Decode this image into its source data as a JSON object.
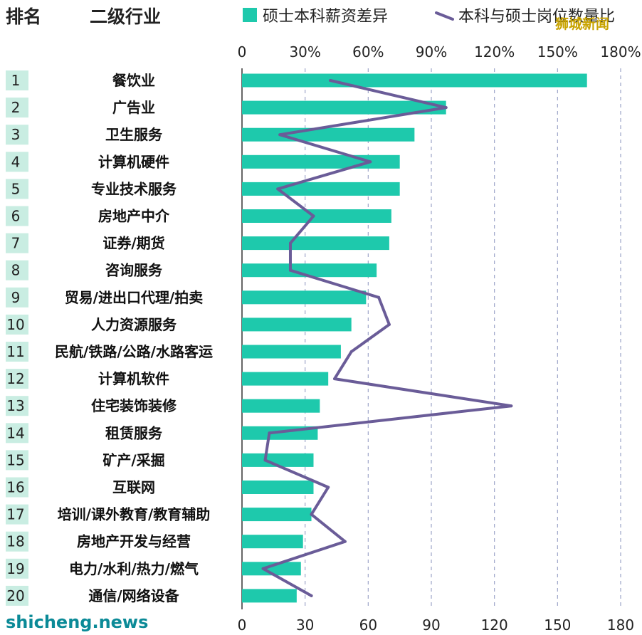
{
  "header": {
    "rank_label": "排名",
    "industry_label": "二级行业"
  },
  "brand": {
    "corner_text": "狮城新闻",
    "footer_text": "shicheng.news"
  },
  "colors": {
    "bar": "#1ec9ac",
    "line": "#6a5c98",
    "rank_bg": "#c9ede2",
    "grid": "#9da5c8"
  },
  "chart_data": {
    "type": "bar",
    "orientation": "horizontal",
    "categories": [
      "餐饮业",
      "广告业",
      "卫生服务",
      "计算机硬件",
      "专业技术服务",
      "房地产中介",
      "证券/期货",
      "咨询服务",
      "贸易/进出口代理/拍卖",
      "人力资源服务",
      "民航/铁路/公路/水路客运",
      "计算机软件",
      "住宅装饰装修",
      "租赁服务",
      "矿产/采掘",
      "互联网",
      "培训/课外教育/教育辅助",
      "房地产开发与经营",
      "电力/水利/热力/燃气",
      "通信/网络设备"
    ],
    "ranks": [
      "1",
      "2",
      "3",
      "4",
      "5",
      "6",
      "7",
      "8",
      "9",
      "10",
      "11",
      "12",
      "13",
      "14",
      "15",
      "16",
      "17",
      "18",
      "19",
      "20"
    ],
    "series": [
      {
        "name": "硕士本科薪资差异",
        "type": "bar",
        "axis": "top",
        "values": [
          164,
          97,
          82,
          75,
          75,
          71,
          70,
          64,
          59,
          52,
          47,
          41,
          37,
          36,
          34,
          34,
          33,
          29,
          28,
          26
        ]
      },
      {
        "name": "本科与硕士岗位数量比",
        "type": "line",
        "axis": "bottom",
        "values": [
          42,
          97,
          18,
          61,
          17,
          34,
          23,
          23,
          65,
          70,
          52,
          44,
          128,
          13,
          11,
          41,
          33,
          49,
          10,
          33
        ]
      }
    ],
    "top_axis": {
      "ticks": [
        "0",
        "30%",
        "60%",
        "90%",
        "120%",
        "150%",
        "180%"
      ],
      "range": [
        0,
        180
      ]
    },
    "bottom_axis": {
      "ticks": [
        "0",
        "30",
        "60",
        "90",
        "120",
        "150",
        "180"
      ],
      "range": [
        0,
        180
      ]
    },
    "grid": "vertical-dashed",
    "legend_position": "top"
  }
}
